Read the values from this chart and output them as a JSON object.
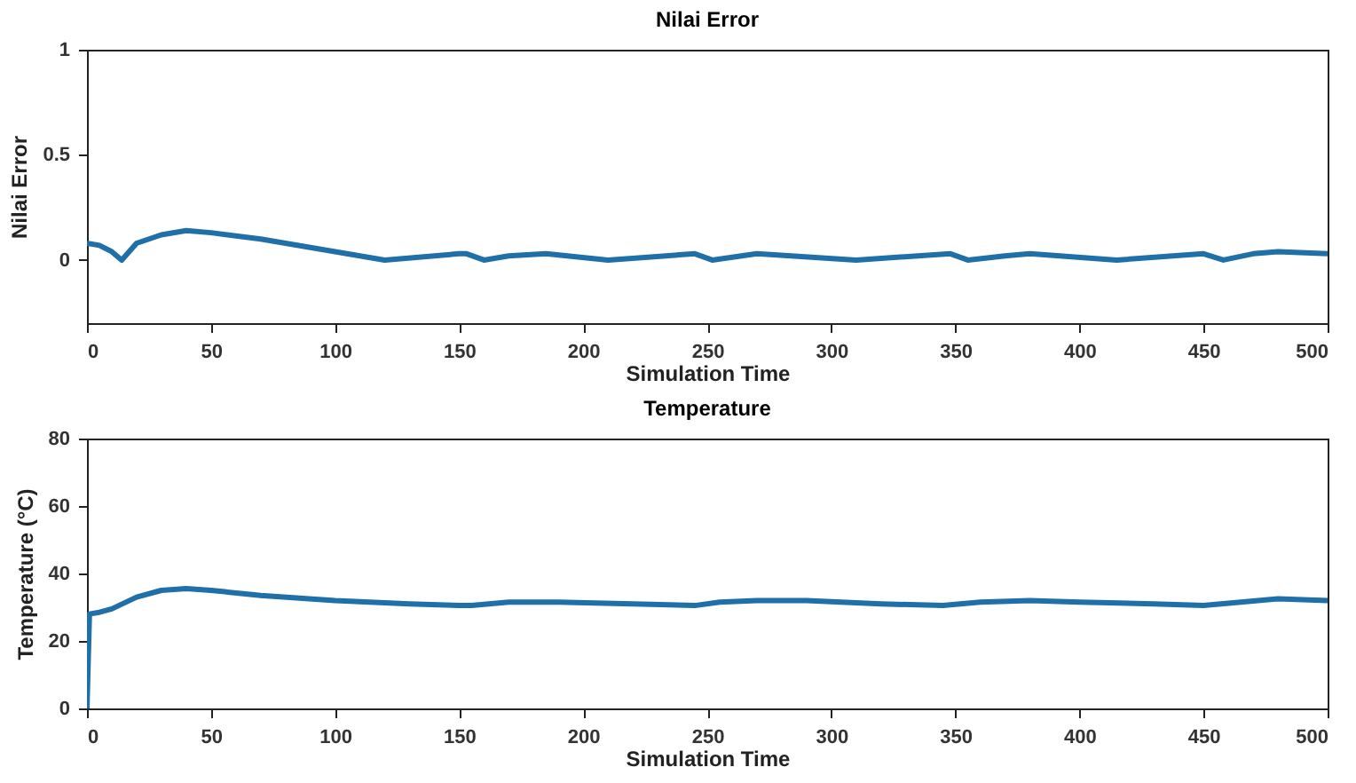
{
  "chart_data": [
    {
      "type": "line",
      "title": "Nilai Error",
      "xlabel": "Simulation Time",
      "ylabel": "Nilai Error",
      "xlim": [
        0,
        500
      ],
      "xticks": [
        0,
        50,
        100,
        150,
        200,
        250,
        300,
        350,
        400,
        450,
        500
      ],
      "ylim": [
        -0.3,
        1
      ],
      "yticks": [
        0,
        0.5,
        1
      ],
      "grid": false,
      "legend": false,
      "series": [
        {
          "color": "#1f6fa8",
          "x": [
            0,
            5,
            10,
            14,
            20,
            30,
            40,
            50,
            70,
            100,
            120,
            150,
            153,
            160,
            170,
            185,
            210,
            245,
            252,
            270,
            310,
            348,
            355,
            370,
            380,
            415,
            450,
            458,
            470,
            480,
            500
          ],
          "values": [
            0.08,
            0.07,
            0.04,
            0.0,
            0.08,
            0.12,
            0.14,
            0.13,
            0.1,
            0.04,
            0.0,
            0.03,
            0.03,
            0.0,
            0.02,
            0.03,
            0.0,
            0.03,
            0.0,
            0.03,
            0.0,
            0.03,
            0.0,
            0.02,
            0.03,
            0.0,
            0.03,
            0.0,
            0.03,
            0.04,
            0.03
          ]
        }
      ]
    },
    {
      "type": "line",
      "title": "Temperature",
      "xlabel": "Simulation Time",
      "ylabel": "Temperature (°C)",
      "xlim": [
        0,
        500
      ],
      "xticks": [
        0,
        50,
        100,
        150,
        200,
        250,
        300,
        350,
        400,
        450,
        500
      ],
      "ylim": [
        0,
        80
      ],
      "yticks": [
        0,
        20,
        40,
        60,
        80
      ],
      "grid": false,
      "legend": false,
      "series": [
        {
          "color": "#1f6fa8",
          "x": [
            0,
            1,
            5,
            10,
            20,
            30,
            40,
            50,
            70,
            100,
            130,
            150,
            155,
            170,
            190,
            220,
            245,
            255,
            270,
            290,
            320,
            345,
            360,
            380,
            400,
            430,
            450,
            465,
            480,
            500
          ],
          "values": [
            0,
            28,
            28.5,
            29.5,
            33,
            35,
            35.5,
            35,
            33.5,
            32,
            31,
            30.5,
            30.5,
            31.5,
            31.5,
            31,
            30.5,
            31.5,
            32,
            32,
            31,
            30.5,
            31.5,
            32,
            31.5,
            31,
            30.5,
            31.5,
            32.5,
            32
          ]
        }
      ]
    }
  ]
}
